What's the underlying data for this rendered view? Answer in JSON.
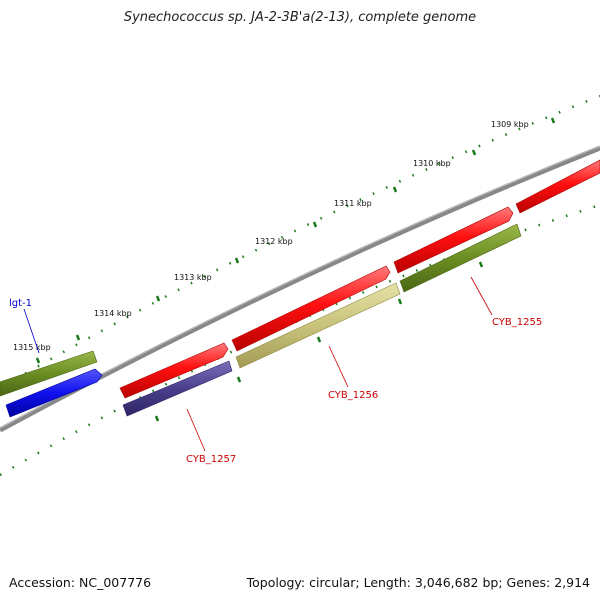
{
  "title": "Synechococcus sp. JA-2-3B'a(2-13), complete genome",
  "footer": {
    "accession": "Accession: NC_007776",
    "summary": "Topology: circular; Length: 3,046,682 bp; Genes: 2,914"
  },
  "ticks": [
    "1309 kbp",
    "1310 kbp",
    "1311 kbp",
    "1312 kbp",
    "1313 kbp",
    "1314 kbp",
    "1315 kbp"
  ],
  "genes": {
    "lgt1": {
      "label": "lgt-1",
      "color": "#0000cc"
    },
    "cyb1257": {
      "label": "CYB_1257",
      "color": "#cc0000"
    },
    "cyb1256": {
      "label": "CYB_1256",
      "color": "#cc0000"
    },
    "cyb1255": {
      "label": "CYB_1255",
      "color": "#cc0000"
    }
  },
  "colors": {
    "red": "#ee1111",
    "olive": "#6b8e23",
    "blue": "#1010ee",
    "purple": "#4a3f8c",
    "khaki": "#c8c27a",
    "backbone": "#777777",
    "tick": "#1a7a1a"
  }
}
